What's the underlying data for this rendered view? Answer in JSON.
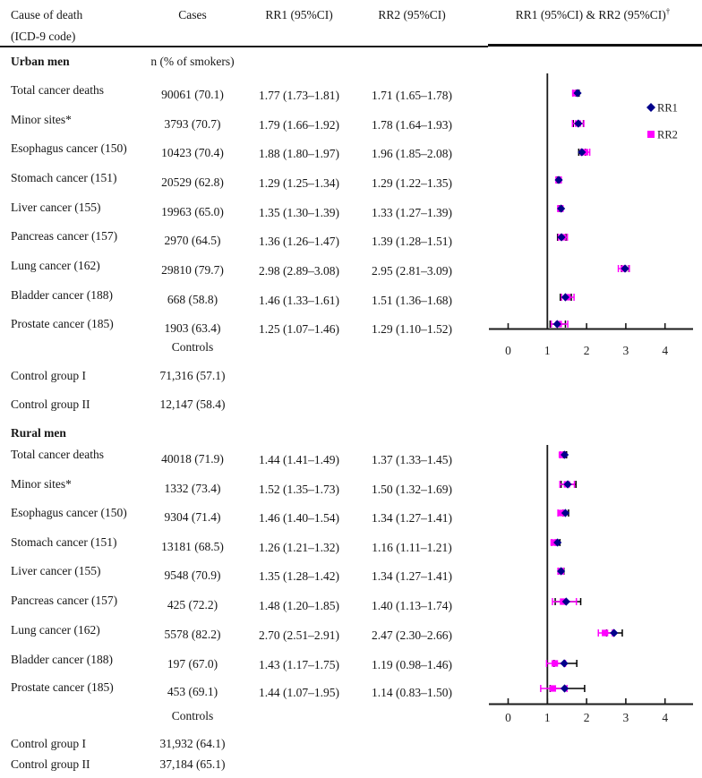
{
  "header": {
    "cause_line1": "Cause of death",
    "cause_line2": "(ICD-9 code)",
    "cases": "Cases",
    "rr1": "RR1 (95%CI)",
    "rr2": "RR2 (95%CI)",
    "plot_title": "RR1 (95%CI) & RR2 (95%CI)",
    "plot_title_superscript": "†"
  },
  "sections": [
    {
      "title": "Urban men",
      "cases_subheader": "n (% of smokers)",
      "rows": [
        {
          "cause": "Total cancer deaths",
          "cases": "90061 (70.1)",
          "rr1": "1.77 (1.73–1.81)",
          "rr2": "1.71 (1.65–1.78)"
        },
        {
          "cause": "Minor sites*",
          "cases": "3793 (70.7)",
          "rr1": "1.79 (1.66–1.92)",
          "rr2": "1.78 (1.64–1.93)"
        },
        {
          "cause": "Esophagus cancer (150)",
          "cases": "10423 (70.4)",
          "rr1": "1.88 (1.80–1.97)",
          "rr2": "1.96 (1.85–2.08)"
        },
        {
          "cause": "Stomach cancer (151)",
          "cases": "20529 (62.8)",
          "rr1": "1.29 (1.25–1.34)",
          "rr2": "1.29 (1.22–1.35)"
        },
        {
          "cause": "Liver cancer (155)",
          "cases": "19963 (65.0)",
          "rr1": "1.35 (1.30–1.39)",
          "rr2": "1.33 (1.27–1.39)"
        },
        {
          "cause": "Pancreas cancer (157)",
          "cases": "2970 (64.5)",
          "rr1": "1.36 (1.26–1.47)",
          "rr2": "1.39 (1.28–1.51)"
        },
        {
          "cause": "Lung cancer (162)",
          "cases": "29810 (79.7)",
          "rr1": "2.98 (2.89–3.08)",
          "rr2": "2.95 (2.81–3.09)"
        },
        {
          "cause": "Bladder cancer (188)",
          "cases": "668 (58.8)",
          "rr1": "1.46 (1.33–1.61)",
          "rr2": "1.51 (1.36–1.68)"
        },
        {
          "cause": "Prostate cancer (185)",
          "cases": "1903 (63.4)",
          "rr1": "1.25 (1.07–1.46)",
          "rr2": "1.29 (1.10–1.52)"
        }
      ],
      "controls_label": "Controls",
      "controls": [
        {
          "label": "Control group I",
          "cases": "71,316 (57.1)"
        },
        {
          "label": "Control group II",
          "cases": "12,147 (58.4)"
        }
      ]
    },
    {
      "title": "Rural men",
      "cases_subheader": "",
      "rows": [
        {
          "cause": "Total cancer deaths",
          "cases": "40018 (71.9)",
          "rr1": "1.44 (1.41–1.49)",
          "rr2": "1.37 (1.33–1.45)"
        },
        {
          "cause": "Minor sites*",
          "cases": "1332 (73.4)",
          "rr1": "1.52 (1.35–1.73)",
          "rr2": "1.50 (1.32–1.69)"
        },
        {
          "cause": "Esophagus cancer (150)",
          "cases": "9304 (71.4)",
          "rr1": "1.46 (1.40–1.54)",
          "rr2": "1.34 (1.27–1.41)"
        },
        {
          "cause": "Stomach cancer (151)",
          "cases": "13181 (68.5)",
          "rr1": "1.26 (1.21–1.32)",
          "rr2": "1.16 (1.11–1.21)"
        },
        {
          "cause": "Liver cancer (155)",
          "cases": "9548 (70.9)",
          "rr1": "1.35 (1.28–1.42)",
          "rr2": "1.34 (1.27–1.41)"
        },
        {
          "cause": "Pancreas cancer (157)",
          "cases": "425 (72.2)",
          "rr1": "1.48 (1.20–1.85)",
          "rr2": "1.40 (1.13–1.74)"
        },
        {
          "cause": "Lung cancer (162)",
          "cases": "5578 (82.2)",
          "rr1": "2.70 (2.51–2.91)",
          "rr2": "2.47 (2.30–2.66)"
        },
        {
          "cause": "Bladder cancer (188)",
          "cases": "197 (67.0)",
          "rr1": "1.43 (1.17–1.75)",
          "rr2": "1.19 (0.98–1.46)"
        },
        {
          "cause": "Prostate cancer (185)",
          "cases": "453 (69.1)",
          "rr1": "1.44 (1.07–1.95)",
          "rr2": "1.14 (0.83–1.50)"
        }
      ],
      "controls_label": "Controls",
      "controls": [
        {
          "label": "Control group I",
          "cases": "31,932 (64.1)"
        },
        {
          "label": "Control group II",
          "cases": "37,184 (65.1)"
        }
      ]
    }
  ],
  "chart_data": [
    {
      "type": "scatter",
      "title": "Urban men: RR1 & RR2 with 95% CI (forest plot)",
      "categories": [
        "Total cancer deaths",
        "Minor sites*",
        "Esophagus cancer (150)",
        "Stomach cancer (151)",
        "Liver cancer (155)",
        "Pancreas cancer (157)",
        "Lung cancer (162)",
        "Bladder cancer (188)",
        "Prostate cancer (185)"
      ],
      "xlim": [
        0,
        4.6
      ],
      "xticks": [
        0,
        1,
        2,
        3,
        4
      ],
      "reference_line_x": 1,
      "grid": false,
      "legend": {
        "position": "right",
        "entries": [
          {
            "label": "RR1",
            "marker": "diamond",
            "color": "#00008B"
          },
          {
            "label": "RR2",
            "marker": "square",
            "color": "#FF00FF"
          }
        ]
      },
      "series": [
        {
          "name": "RR1",
          "marker": "diamond",
          "color": "#00008B",
          "bar_color": "#000000",
          "values": [
            [
              1.77,
              1.73,
              1.81
            ],
            [
              1.79,
              1.66,
              1.92
            ],
            [
              1.88,
              1.8,
              1.97
            ],
            [
              1.29,
              1.25,
              1.34
            ],
            [
              1.35,
              1.3,
              1.39
            ],
            [
              1.36,
              1.26,
              1.47
            ],
            [
              2.98,
              2.89,
              3.08
            ],
            [
              1.46,
              1.33,
              1.61
            ],
            [
              1.25,
              1.07,
              1.46
            ]
          ]
        },
        {
          "name": "RR2",
          "marker": "square",
          "color": "#FF00FF",
          "bar_color": "#FF00FF",
          "values": [
            [
              1.71,
              1.65,
              1.78
            ],
            [
              1.78,
              1.64,
              1.93
            ],
            [
              1.96,
              1.85,
              2.08
            ],
            [
              1.29,
              1.22,
              1.35
            ],
            [
              1.33,
              1.27,
              1.39
            ],
            [
              1.39,
              1.28,
              1.51
            ],
            [
              2.95,
              2.81,
              3.09
            ],
            [
              1.51,
              1.36,
              1.68
            ],
            [
              1.29,
              1.1,
              1.52
            ]
          ]
        }
      ]
    },
    {
      "type": "scatter",
      "title": "Rural men: RR1 & RR2 with 95% CI (forest plot)",
      "categories": [
        "Total cancer deaths",
        "Minor sites*",
        "Esophagus cancer (150)",
        "Stomach cancer (151)",
        "Liver cancer (155)",
        "Pancreas cancer (157)",
        "Lung cancer (162)",
        "Bladder cancer (188)",
        "Prostate cancer (185)"
      ],
      "xlim": [
        0,
        4.6
      ],
      "xticks": [
        0,
        1,
        2,
        3,
        4
      ],
      "reference_line_x": 1,
      "grid": false,
      "legend": null,
      "series": [
        {
          "name": "RR1",
          "marker": "diamond",
          "color": "#00008B",
          "bar_color": "#000000",
          "values": [
            [
              1.44,
              1.41,
              1.49
            ],
            [
              1.52,
              1.35,
              1.73
            ],
            [
              1.46,
              1.4,
              1.54
            ],
            [
              1.26,
              1.21,
              1.32
            ],
            [
              1.35,
              1.28,
              1.42
            ],
            [
              1.48,
              1.2,
              1.85
            ],
            [
              2.7,
              2.51,
              2.91
            ],
            [
              1.43,
              1.17,
              1.75
            ],
            [
              1.44,
              1.07,
              1.95
            ]
          ]
        },
        {
          "name": "RR2",
          "marker": "square",
          "color": "#FF00FF",
          "bar_color": "#FF00FF",
          "values": [
            [
              1.37,
              1.33,
              1.45
            ],
            [
              1.5,
              1.32,
              1.69
            ],
            [
              1.34,
              1.27,
              1.41
            ],
            [
              1.16,
              1.11,
              1.21
            ],
            [
              1.34,
              1.27,
              1.41
            ],
            [
              1.4,
              1.13,
              1.74
            ],
            [
              2.47,
              2.3,
              2.66
            ],
            [
              1.19,
              0.98,
              1.46
            ],
            [
              1.14,
              0.83,
              1.5
            ]
          ]
        }
      ]
    }
  ],
  "colors": {
    "rr1_marker": "#00008B",
    "rr2_marker": "#FF00FF",
    "rr1_bar": "#000000",
    "axis": "#1a1a1a"
  }
}
